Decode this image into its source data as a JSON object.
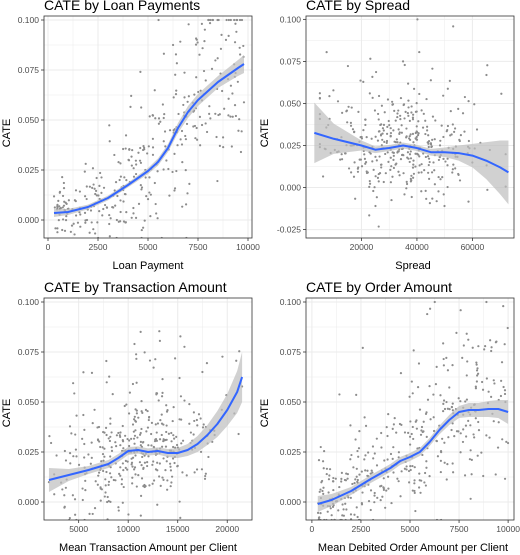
{
  "colors": {
    "points": "#8c8c8c",
    "smooth": "#3366ff",
    "band": "#bdbdbd",
    "grid": "#ebebeb",
    "panel_border": "#333333"
  },
  "chart_data": [
    {
      "type": "scatter",
      "title": "CATE by Loan Payments",
      "xlabel": "Loan Payment",
      "ylabel": "CATE",
      "xlim": [
        -200,
        10200
      ],
      "ylim": [
        -0.009,
        0.102
      ],
      "x_ticks": [
        0,
        2500,
        5000,
        7500,
        10000
      ],
      "x_tick_labels": [
        "0",
        "2500",
        "5000",
        "7500",
        "10000"
      ],
      "y_ticks": [
        0.0,
        0.025,
        0.05,
        0.075,
        0.1
      ],
      "y_tick_labels": [
        "0.000",
        "0.025",
        "0.050",
        "0.075",
        "0.100"
      ],
      "grid": true,
      "smooth": {
        "x": [
          300,
          1000,
          2000,
          3000,
          4000,
          5000,
          5500,
          6000,
          6500,
          7000,
          7500,
          8000,
          8500,
          9000,
          9500,
          9800
        ],
        "y": [
          0.0035,
          0.004,
          0.0065,
          0.011,
          0.0175,
          0.0245,
          0.029,
          0.036,
          0.046,
          0.054,
          0.06,
          0.0645,
          0.069,
          0.0725,
          0.076,
          0.078
        ]
      },
      "band_halfwidth": [
        0.002,
        0.0015,
        0.0012,
        0.0012,
        0.0012,
        0.0015,
        0.0018,
        0.002,
        0.0025,
        0.003,
        0.003,
        0.003,
        0.003,
        0.0035,
        0.004,
        0.0045
      ],
      "scatter_spec": {
        "n": 360,
        "seed": 11,
        "x_range": [
          300,
          9800
        ],
        "noise": "0.004 + 0.0025*(x/1000)",
        "y_clip": [
          -0.009,
          0.1
        ]
      }
    },
    {
      "type": "scatter",
      "title": "CATE by Spread",
      "xlabel": "Spread",
      "ylabel": "CATE",
      "xlim": [
        0,
        75000
      ],
      "ylim": [
        -0.03,
        0.102
      ],
      "x_ticks": [
        20000,
        40000,
        60000
      ],
      "x_tick_labels": [
        "20000",
        "40000",
        "60000"
      ],
      "y_ticks": [
        -0.025,
        0.0,
        0.025,
        0.05,
        0.075,
        0.1
      ],
      "y_tick_labels": [
        "-0.025",
        "0.000",
        "0.025",
        "0.050",
        "0.075",
        "0.100"
      ],
      "grid": true,
      "smooth": {
        "x": [
          3000,
          10000,
          20000,
          25000,
          30000,
          35000,
          40000,
          45000,
          50000,
          55000,
          60000,
          65000,
          70000,
          73000
        ],
        "y": [
          0.0325,
          0.029,
          0.025,
          0.0225,
          0.0235,
          0.025,
          0.0235,
          0.021,
          0.021,
          0.0205,
          0.019,
          0.016,
          0.012,
          0.009
        ]
      },
      "band_halfwidth": [
        0.018,
        0.009,
        0.003,
        0.002,
        0.0018,
        0.0018,
        0.0018,
        0.002,
        0.0028,
        0.0045,
        0.007,
        0.011,
        0.016,
        0.019
      ],
      "scatter_spec": {
        "n": 400,
        "seed": 29,
        "x_range": [
          5000,
          72000
        ],
        "x_center": 35000,
        "noise": "0.015",
        "y_clip": [
          -0.028,
          0.1
        ]
      }
    },
    {
      "type": "scatter",
      "title": "CATE by Transaction Amount",
      "xlabel": "Mean Transaction Amount per Client",
      "ylabel": "CATE",
      "xlim": [
        1500,
        22500
      ],
      "ylim": [
        -0.009,
        0.102
      ],
      "x_ticks": [
        5000,
        10000,
        15000,
        20000
      ],
      "x_tick_labels": [
        "5000",
        "10000",
        "15000",
        "20000"
      ],
      "y_ticks": [
        0.0,
        0.025,
        0.05,
        0.075,
        0.1
      ],
      "y_tick_labels": [
        "0.000",
        "0.025",
        "0.050",
        "0.075",
        "0.100"
      ],
      "grid": true,
      "smooth": {
        "x": [
          2000,
          4000,
          6000,
          8000,
          9000,
          10000,
          11000,
          12000,
          13000,
          14000,
          15000,
          16000,
          17000,
          18000,
          19000,
          20000,
          21000,
          21500
        ],
        "y": [
          0.011,
          0.0135,
          0.016,
          0.019,
          0.022,
          0.0255,
          0.026,
          0.025,
          0.0255,
          0.0245,
          0.0245,
          0.026,
          0.029,
          0.0335,
          0.039,
          0.046,
          0.055,
          0.0625
        ]
      },
      "band_halfwidth": [
        0.006,
        0.003,
        0.002,
        0.002,
        0.002,
        0.002,
        0.0018,
        0.0018,
        0.0018,
        0.002,
        0.0025,
        0.003,
        0.004,
        0.005,
        0.0065,
        0.008,
        0.0105,
        0.0125
      ],
      "scatter_spec": {
        "n": 400,
        "seed": 47,
        "x_range": [
          2000,
          21500
        ],
        "x_center": 11000,
        "noise": "0.014",
        "y_clip": [
          -0.009,
          0.1
        ]
      }
    },
    {
      "type": "scatter",
      "title": "CATE by Order Amount",
      "xlabel": "Mean Debited Order Amount per Client",
      "ylabel": "CATE",
      "xlim": [
        -300,
        10300
      ],
      "ylim": [
        -0.009,
        0.102
      ],
      "x_ticks": [
        0,
        2500,
        5000,
        7500,
        10000
      ],
      "x_tick_labels": [
        "0",
        "2500",
        "5000",
        "7500",
        "10000"
      ],
      "y_ticks": [
        0.0,
        0.025,
        0.05,
        0.075,
        0.1
      ],
      "y_tick_labels": [
        "0.000",
        "0.025",
        "0.050",
        "0.075",
        "0.100"
      ],
      "grid": true,
      "smooth": {
        "x": [
          300,
          1000,
          2000,
          3000,
          4000,
          4500,
          5000,
          5500,
          6000,
          6500,
          7000,
          7500,
          8000,
          8500,
          9000,
          9500,
          10000
        ],
        "y": [
          -0.001,
          0.001,
          0.0055,
          0.0115,
          0.017,
          0.0205,
          0.0225,
          0.025,
          0.03,
          0.036,
          0.041,
          0.045,
          0.046,
          0.046,
          0.0465,
          0.0465,
          0.045
        ]
      },
      "band_halfwidth": [
        0.004,
        0.003,
        0.002,
        0.002,
        0.002,
        0.002,
        0.002,
        0.002,
        0.002,
        0.0022,
        0.0025,
        0.003,
        0.0035,
        0.0035,
        0.004,
        0.0045,
        0.006
      ],
      "scatter_spec": {
        "n": 400,
        "seed": 83,
        "x_range": [
          300,
          10000
        ],
        "noise": "0.008 + 0.0012*(x/1000)",
        "y_clip": [
          -0.009,
          0.1
        ]
      }
    }
  ]
}
